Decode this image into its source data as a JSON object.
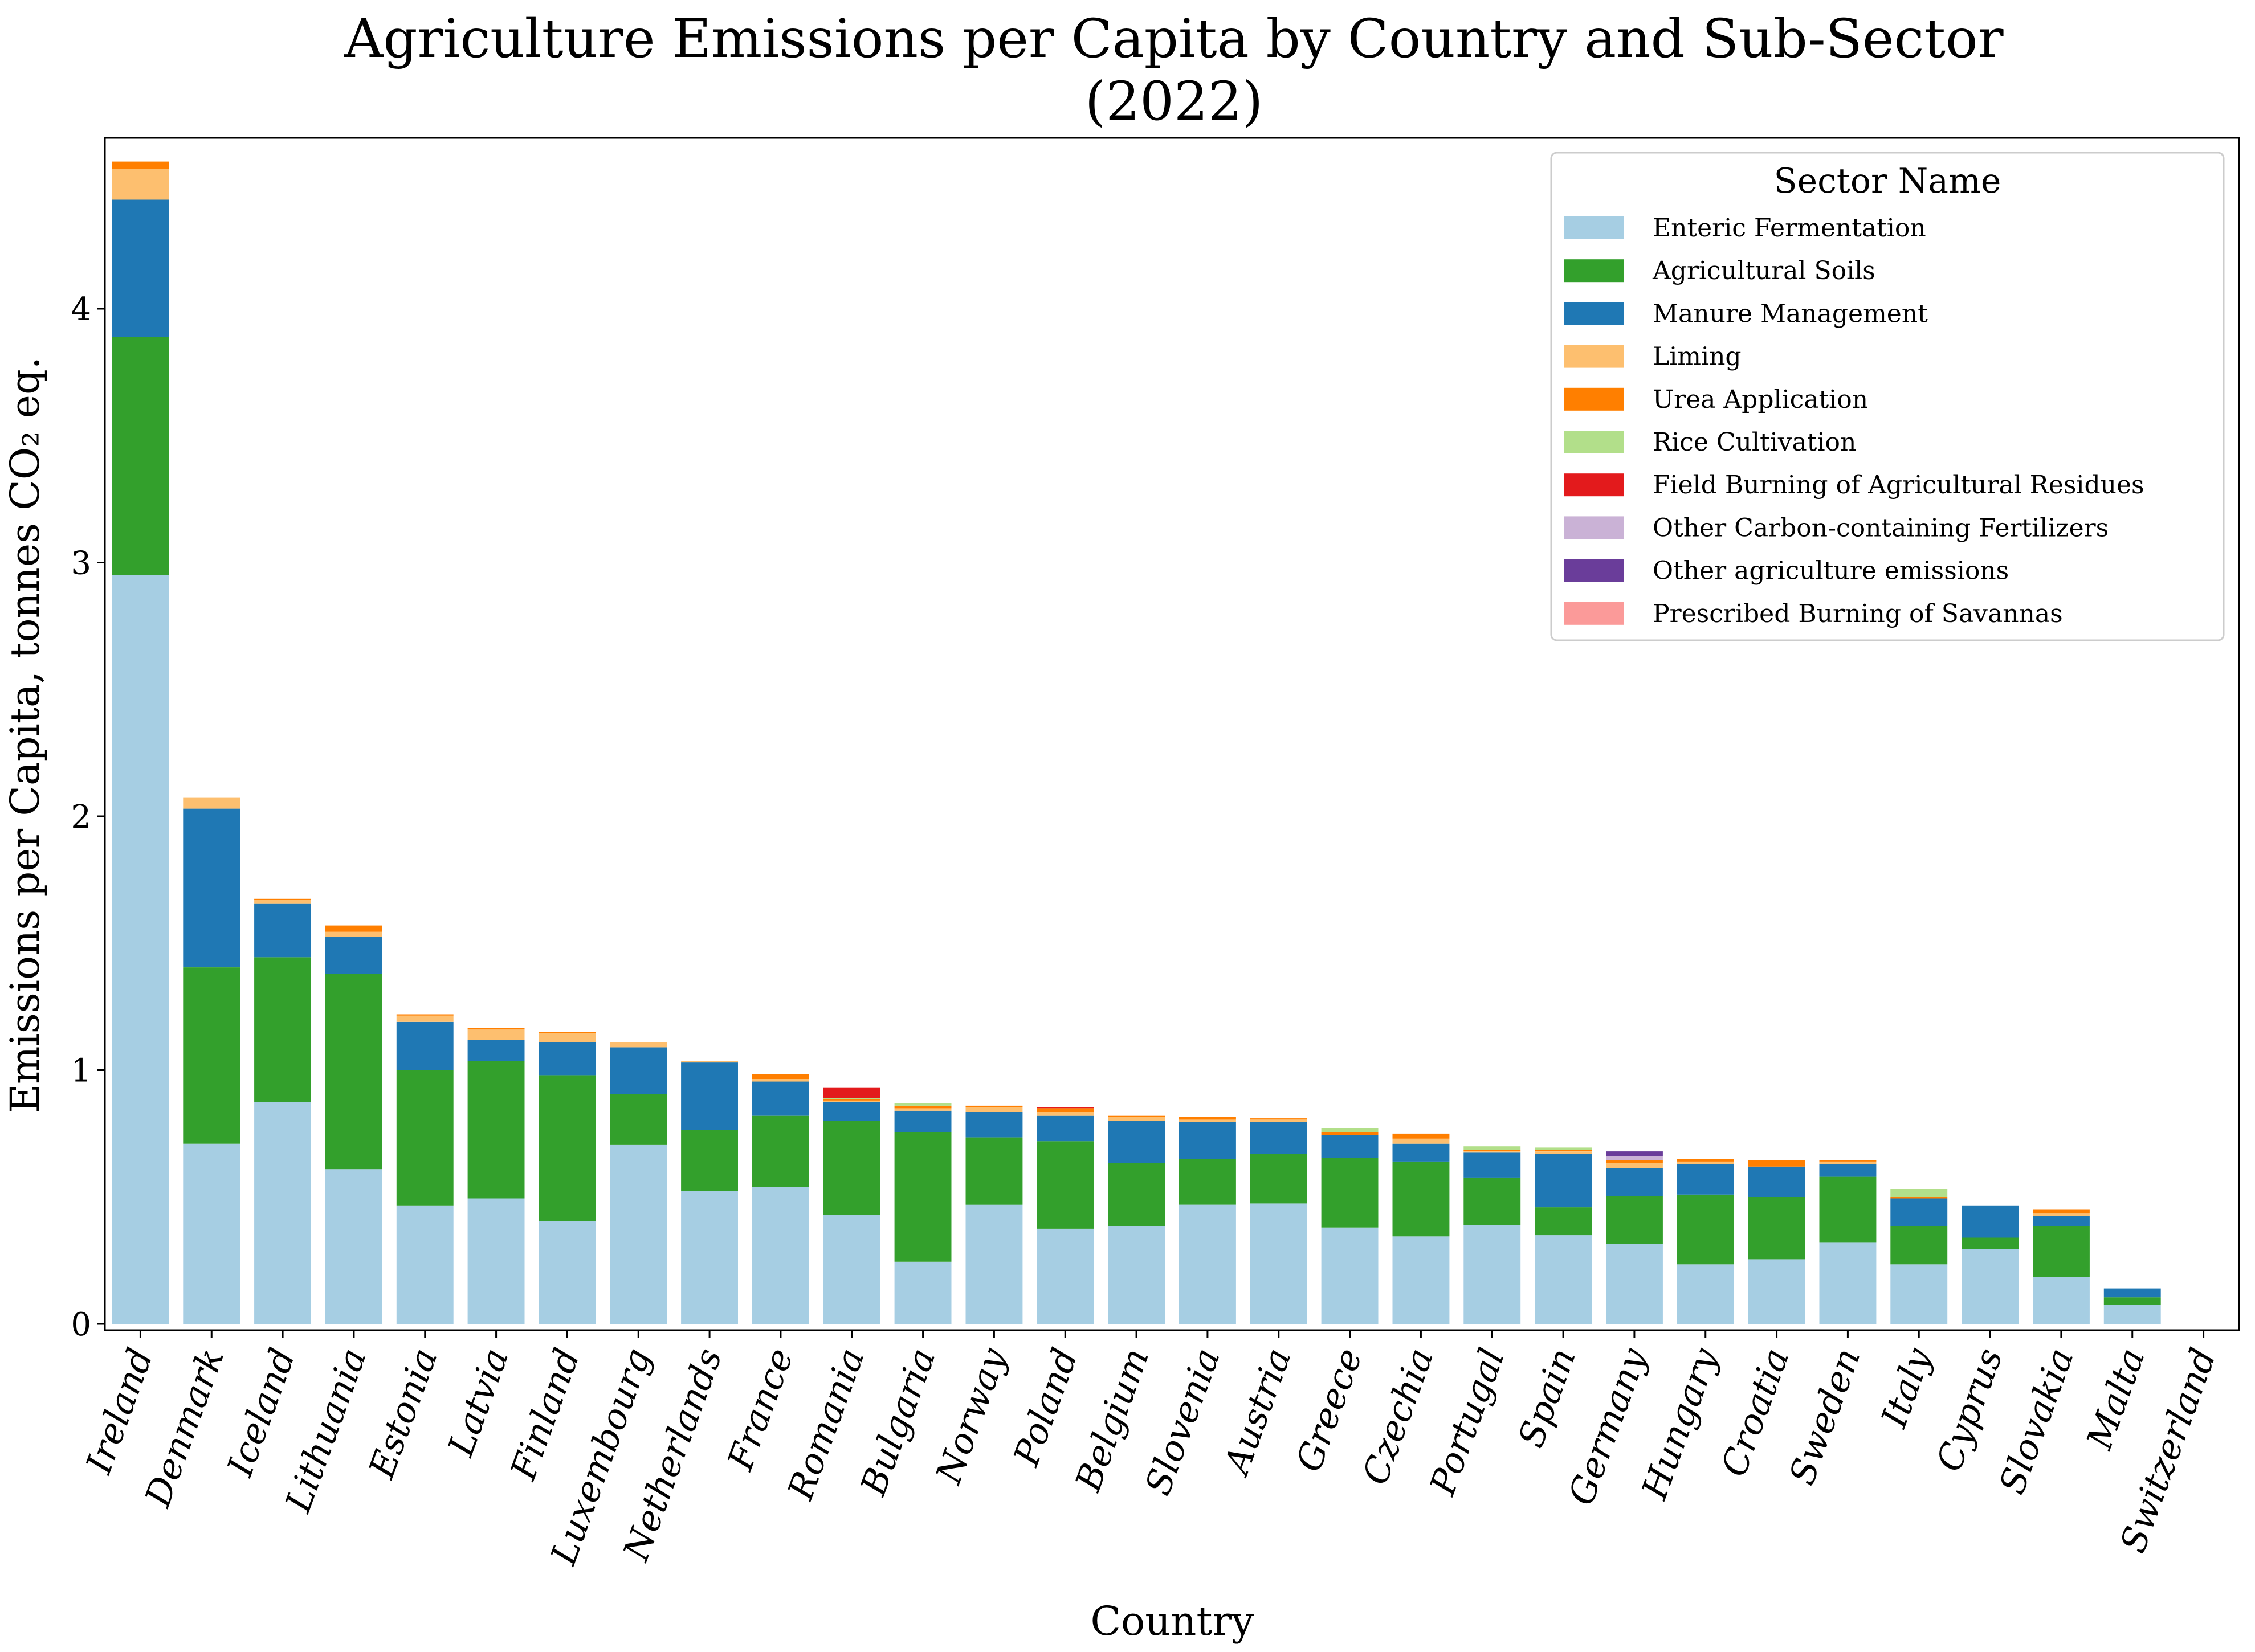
{
  "chart_data": {
    "type": "bar",
    "stacked": true,
    "title": "Agriculture Emissions per Capita by Country and Sub-Sector",
    "subtitle": "(2022)",
    "xlabel": "Country",
    "ylabel": "Emissions per Capita, tonnes CO₂ eq.",
    "ylim": [
      0,
      4.65
    ],
    "yticks": [
      "0",
      "1",
      "2",
      "3",
      "4"
    ],
    "grid": false,
    "legend": {
      "title": "Sector Name",
      "placement": "top-right"
    },
    "categories": [
      "Ireland",
      "Denmark",
      "Iceland",
      "Lithuania",
      "Estonia",
      "Latvia",
      "Finland",
      "Luxembourg",
      "Netherlands",
      "France",
      "Romania",
      "Bulgaria",
      "Norway",
      "Poland",
      "Belgium",
      "Slovenia",
      "Austria",
      "Greece",
      "Czechia",
      "Portugal",
      "Spain",
      "Germany",
      "Hungary",
      "Croatia",
      "Sweden",
      "Italy",
      "Cyprus",
      "Slovakia",
      "Malta",
      "Switzerland"
    ],
    "series": [
      {
        "name": "Enteric Fermentation",
        "color": "#a6cee3",
        "values": [
          2.95,
          0.71,
          0.875,
          0.61,
          0.465,
          0.495,
          0.405,
          0.705,
          0.525,
          0.54,
          0.43,
          0.245,
          0.47,
          0.375,
          0.385,
          0.47,
          0.475,
          0.38,
          0.345,
          0.39,
          0.35,
          0.315,
          0.235,
          0.255,
          0.32,
          0.235,
          0.295,
          0.185,
          0.075,
          0
        ]
      },
      {
        "name": "Agricultural Soils",
        "color": "#33a02c",
        "values": [
          0.94,
          0.695,
          0.57,
          0.77,
          0.535,
          0.54,
          0.575,
          0.2,
          0.24,
          0.28,
          0.37,
          0.51,
          0.265,
          0.345,
          0.25,
          0.18,
          0.195,
          0.275,
          0.295,
          0.185,
          0.11,
          0.19,
          0.275,
          0.245,
          0.26,
          0.15,
          0.045,
          0.2,
          0.03,
          0
        ]
      },
      {
        "name": "Manure Management",
        "color": "#1f78b4",
        "values": [
          0.54,
          0.625,
          0.21,
          0.145,
          0.19,
          0.085,
          0.13,
          0.185,
          0.265,
          0.135,
          0.075,
          0.085,
          0.1,
          0.1,
          0.165,
          0.145,
          0.125,
          0.09,
          0.07,
          0.1,
          0.21,
          0.11,
          0.12,
          0.12,
          0.05,
          0.11,
          0.125,
          0.04,
          0.035,
          0
        ]
      },
      {
        "name": "Liming",
        "color": "#fdbf6f",
        "values": [
          0.12,
          0.045,
          0.015,
          0.02,
          0.025,
          0.04,
          0.035,
          0.02,
          0.005,
          0.01,
          0.005,
          0.01,
          0.02,
          0.015,
          0.015,
          0.01,
          0.01,
          0,
          0.02,
          0.005,
          0.01,
          0.02,
          0.01,
          0,
          0.01,
          0,
          0,
          0.01,
          0,
          0
        ]
      },
      {
        "name": "Urea Application",
        "color": "#ff7f00",
        "values": [
          0.03,
          0,
          0.005,
          0.025,
          0.005,
          0.005,
          0.005,
          0,
          0,
          0.02,
          0.005,
          0.01,
          0.005,
          0.015,
          0.005,
          0.01,
          0.005,
          0.01,
          0.02,
          0.005,
          0.005,
          0.01,
          0.01,
          0.025,
          0.005,
          0.005,
          0,
          0.015,
          0,
          0
        ]
      },
      {
        "name": "Rice Cultivation",
        "color": "#b2df8a",
        "values": [
          0,
          0,
          0,
          0,
          0,
          0,
          0,
          0,
          0,
          0,
          0.005,
          0.01,
          0,
          0,
          0,
          0,
          0,
          0.015,
          0,
          0.015,
          0.01,
          0,
          0,
          0,
          0,
          0.03,
          0,
          0,
          0,
          0
        ]
      },
      {
        "name": "Field Burning of Agricultural Residues",
        "color": "#e31a1c",
        "values": [
          0,
          0,
          0,
          0,
          0,
          0,
          0,
          0,
          0,
          0,
          0.04,
          0,
          0,
          0.005,
          0,
          0,
          0,
          0,
          0,
          0,
          0,
          0,
          0,
          0,
          0,
          0,
          0,
          0,
          0,
          0
        ]
      },
      {
        "name": "Other Carbon-containing Fertilizers",
        "color": "#cab2d6",
        "values": [
          0,
          0,
          0,
          0,
          0,
          0,
          0,
          0,
          0,
          0,
          0,
          0,
          0,
          0,
          0,
          0,
          0,
          0,
          0,
          0,
          0,
          0.015,
          0,
          0,
          0,
          0,
          0,
          0,
          0,
          0
        ]
      },
      {
        "name": "Other agriculture emissions",
        "color": "#6a3d9a",
        "values": [
          0,
          0,
          0,
          0,
          0,
          0,
          0,
          0,
          0,
          0,
          0,
          0,
          0,
          0,
          0,
          0,
          0,
          0,
          0,
          0,
          0,
          0.02,
          0,
          0,
          0,
          0,
          0,
          0,
          0,
          0
        ]
      },
      {
        "name": "Prescribed Burning of Savannas",
        "color": "#fb9a99",
        "values": [
          0,
          0,
          0,
          0,
          0,
          0,
          0,
          0,
          0,
          0,
          0,
          0,
          0,
          0,
          0,
          0,
          0,
          0,
          0,
          0,
          0,
          0,
          0,
          0,
          0,
          0,
          0,
          0,
          0,
          0
        ]
      }
    ]
  }
}
